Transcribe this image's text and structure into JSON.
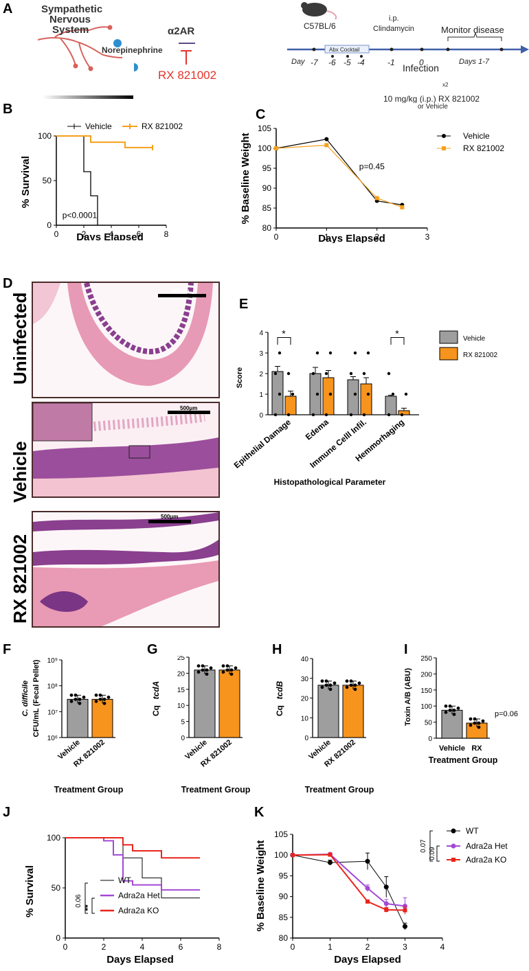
{
  "panel_letters": {
    "A": "A",
    "B": "B",
    "C": "C",
    "D": "D",
    "E": "E",
    "F": "F",
    "G": "G",
    "H": "H",
    "I": "I",
    "J": "J",
    "K": "K"
  },
  "panelA": {
    "sns_line1": "Sympathetic",
    "sns_line2": "Nervous",
    "sns_line3": "System",
    "norepinephrine": "Norepinephrine",
    "receptor": "α2AR",
    "drug": "RX 821002",
    "mouse": "C57BL/6",
    "ip": "i.p.",
    "clindamycin": "Clindamycin",
    "monitor": "Monitor disease",
    "day_label": "Day",
    "days": [
      "-7",
      "-6",
      "-5",
      "-4",
      "-1",
      "0"
    ],
    "abx": "Abx Cocktail",
    "infection": "Infection",
    "days17": "Days 1-7",
    "x2": "x2",
    "dose": "10 mg/kg (i.p.) RX 821002",
    "or_vehicle": "or Vehicle"
  },
  "panelD": {
    "rows": [
      "Uninfected",
      "Vehicle",
      "RX 821002"
    ],
    "scale": "500μm"
  },
  "colors": {
    "vehicle": "#000000",
    "rx": "#f5a01a",
    "gray": "#9e9e9e",
    "orange": "#f7941d",
    "wt": "#000000",
    "het": "#a349d6",
    "ko": "#e8251b",
    "histo_bg": "#f7d6df",
    "histo_purple": "#8a3f8f",
    "histo_pink": "#e79ab5"
  },
  "chart_data": [
    {
      "id": "B",
      "type": "line",
      "ylabel": "% Survival",
      "xlabel": "Days Elapsed",
      "xlim": [
        0,
        8
      ],
      "ylim": [
        0,
        100
      ],
      "xticks": [
        0,
        2,
        4,
        6,
        8
      ],
      "yticks": [
        0,
        50,
        100
      ],
      "annotation": "p<0.0001",
      "legend_position": "top",
      "series": [
        {
          "name": "Vehicle",
          "step": [
            [
              0,
              100
            ],
            [
              2,
              100
            ],
            [
              2,
              60
            ],
            [
              2.5,
              60
            ],
            [
              2.5,
              33
            ],
            [
              3,
              33
            ],
            [
              3,
              0
            ]
          ]
        },
        {
          "name": "RX 821002",
          "step": [
            [
              0,
              100
            ],
            [
              2.5,
              100
            ],
            [
              2.5,
              93
            ],
            [
              5,
              93
            ],
            [
              5,
              87
            ],
            [
              7,
              87
            ]
          ]
        }
      ]
    },
    {
      "id": "C",
      "type": "line",
      "ylabel": "% Baseline Weight",
      "xlabel": "Days Elapsed",
      "xlim": [
        0,
        3
      ],
      "ylim": [
        80,
        105
      ],
      "xticks": [
        0,
        1,
        2,
        3
      ],
      "yticks": [
        80,
        85,
        90,
        95,
        100,
        105
      ],
      "annotation": "p=0.45",
      "legend_position": "right",
      "series": [
        {
          "name": "Vehicle",
          "x": [
            0,
            1,
            2,
            2.5
          ],
          "y": [
            100,
            102.3,
            86.8,
            85.8
          ]
        },
        {
          "name": "RX 821002",
          "x": [
            0,
            1,
            2,
            2.5
          ],
          "y": [
            100,
            100.8,
            87.5,
            85.2
          ]
        }
      ]
    },
    {
      "id": "E",
      "type": "bar",
      "ylabel": "Score",
      "xlabel": "Histopathological Parameter",
      "ylim": [
        0,
        4
      ],
      "yticks": [
        0,
        1,
        2,
        3,
        4
      ],
      "categories": [
        "Epithelial Damage",
        "Edema",
        "Immune Celll Infil.",
        "Hemmorhaging"
      ],
      "significance": [
        "*",
        "",
        "",
        "*"
      ],
      "series": [
        {
          "name": "Vehicle",
          "values": [
            2.1,
            2.0,
            1.7,
            0.9
          ],
          "errors": [
            0.25,
            0.3,
            0.15,
            0.05
          ]
        },
        {
          "name": "RX 821002",
          "values": [
            0.9,
            1.8,
            1.5,
            0.2
          ],
          "errors": [
            0.25,
            0.35,
            0.3,
            0.12
          ]
        }
      ]
    },
    {
      "id": "F",
      "type": "bar",
      "ylabel_italic": "C. difficile",
      "ylabel": "CFU/mL (Fecal Pellet)",
      "xlabel": "Treatment Group",
      "log_scale": true,
      "ylim_exp": [
        6,
        9
      ],
      "ytick_labels": [
        "10⁶",
        "10⁷",
        "10⁸",
        "10⁹"
      ],
      "categories": [
        "Vehicle",
        "RX 821002"
      ],
      "values": [
        30000000,
        30000000
      ]
    },
    {
      "id": "G",
      "type": "bar",
      "ylabel_italic": "tcdA",
      "ylabel": "Cq",
      "xlabel": "Treatment Group",
      "ylim": [
        0,
        25
      ],
      "yticks": [
        0,
        5,
        10,
        15,
        20,
        25
      ],
      "categories": [
        "Vehicle",
        "RX 821002"
      ],
      "values": [
        21,
        21
      ]
    },
    {
      "id": "H",
      "type": "bar",
      "ylabel_italic": "tcdB",
      "ylabel": "Cq",
      "xlabel": "Treatment Group",
      "ylim": [
        0,
        40
      ],
      "yticks": [
        0,
        10,
        20,
        30,
        40
      ],
      "categories": [
        "Vehicle",
        "RX 821002"
      ],
      "values": [
        26.5,
        26.5
      ]
    },
    {
      "id": "I",
      "type": "bar",
      "ylabel": "Toxin A/B (ABU)",
      "xlabel": "Treatment Group",
      "ylim": [
        0,
        250
      ],
      "yticks": [
        0,
        50,
        100,
        150,
        200,
        250
      ],
      "categories": [
        "Vehicle",
        "RX"
      ],
      "values": [
        87,
        47
      ],
      "annotation": "p=0.06"
    },
    {
      "id": "J",
      "type": "line",
      "ylabel": "% Survival",
      "xlabel": "Days Elapsed",
      "xlim": [
        0,
        8
      ],
      "ylim": [
        0,
        100
      ],
      "xticks": [
        0,
        2,
        4,
        6,
        8
      ],
      "yticks": [
        0,
        50,
        100
      ],
      "sig": [
        "0.06",
        "**"
      ],
      "series": [
        {
          "name": "WT",
          "step": [
            [
              0,
              100
            ],
            [
              3,
              100
            ],
            [
              3,
              80
            ],
            [
              4,
              80
            ],
            [
              4,
              60
            ],
            [
              5,
              60
            ],
            [
              5,
              40
            ],
            [
              7,
              40
            ]
          ]
        },
        {
          "name": "Adra2a Het",
          "step": [
            [
              0,
              100
            ],
            [
              2,
              100
            ],
            [
              2,
              97
            ],
            [
              2.5,
              97
            ],
            [
              2.5,
              83
            ],
            [
              3,
              83
            ],
            [
              3,
              57
            ],
            [
              3.5,
              57
            ],
            [
              3.5,
              53
            ],
            [
              5,
              53
            ],
            [
              5,
              48
            ],
            [
              7,
              48
            ]
          ]
        },
        {
          "name": "Adra2a KO",
          "step": [
            [
              0,
              100
            ],
            [
              3,
              100
            ],
            [
              3,
              93
            ],
            [
              3.5,
              93
            ],
            [
              3.5,
              87
            ],
            [
              5,
              87
            ],
            [
              5,
              80
            ],
            [
              7,
              80
            ]
          ]
        }
      ]
    },
    {
      "id": "K",
      "type": "line",
      "ylabel": "% Baseline Weight",
      "xlabel": "Days Elapsed",
      "xlim": [
        0,
        4
      ],
      "ylim": [
        80,
        105
      ],
      "xticks": [
        0,
        1,
        2,
        3,
        4
      ],
      "yticks": [
        80,
        85,
        90,
        95,
        100,
        105
      ],
      "sig": [
        "0.07",
        "0.09"
      ],
      "series": [
        {
          "name": "WT",
          "x": [
            0,
            1,
            2,
            2.5,
            3
          ],
          "y": [
            100,
            98.2,
            98.5,
            92.3,
            82.8
          ],
          "err": [
            0,
            0.6,
            2,
            2.5,
            0.8
          ]
        },
        {
          "name": "Adra2a Het",
          "x": [
            0,
            1,
            2,
            2.5,
            3
          ],
          "y": [
            100,
            100.2,
            92,
            88.3,
            87.7
          ],
          "err": [
            0,
            0.3,
            0.8,
            1,
            2
          ]
        },
        {
          "name": "Adra2a KO",
          "x": [
            0,
            1,
            2,
            2.5,
            3
          ],
          "y": [
            100,
            100.1,
            88.8,
            86.8,
            86.7
          ],
          "err": [
            0,
            0.2,
            0.4,
            0.6,
            0.9
          ]
        }
      ]
    }
  ]
}
